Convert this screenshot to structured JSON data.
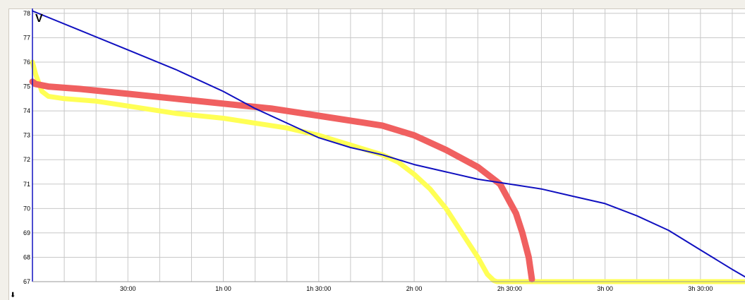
{
  "chart_data": {
    "type": "line",
    "ylabel": "V",
    "ylim": [
      67,
      78.2
    ],
    "xlim_minutes": [
      0,
      224
    ],
    "yticks": [
      "78",
      "77",
      "76",
      "75",
      "74",
      "73",
      "72",
      "71",
      "70",
      "69",
      "68",
      "67"
    ],
    "ytick_values": [
      78,
      77,
      76,
      75,
      74,
      73,
      72,
      71,
      70,
      69,
      68,
      67
    ],
    "xticks": [
      "30:00",
      "1h 00",
      "1h 30:00",
      "2h 00",
      "2h 30:00",
      "3h 00",
      "3h 30:00"
    ],
    "xtick_minutes": [
      30,
      60,
      90,
      120,
      150,
      180,
      210
    ],
    "grid": true,
    "series": [
      {
        "color": "#1010c0",
        "x_minutes": [
          0,
          15,
          30,
          45,
          60,
          70,
          80,
          90,
          100,
          110,
          120,
          130,
          140,
          150,
          160,
          170,
          180,
          190,
          200,
          210,
          220,
          224
        ],
        "y": [
          78.1,
          77.3,
          76.5,
          75.7,
          74.8,
          74.1,
          73.5,
          72.9,
          72.5,
          72.2,
          71.8,
          71.5,
          71.2,
          71.0,
          70.8,
          70.5,
          70.2,
          69.7,
          69.1,
          68.3,
          67.5,
          67.2
        ]
      },
      {
        "color": "#f06060",
        "x_minutes": [
          0,
          1,
          5,
          15,
          30,
          45,
          60,
          75,
          90,
          100,
          110,
          120,
          130,
          140,
          147,
          152,
          154,
          156,
          157
        ],
        "y": [
          75.2,
          75.1,
          75.0,
          74.9,
          74.7,
          74.5,
          74.3,
          74.1,
          73.8,
          73.6,
          73.4,
          73.0,
          72.4,
          71.7,
          71.0,
          69.8,
          69.0,
          68.0,
          67.1
        ]
      },
      {
        "color": "#ffff55",
        "x_minutes": [
          0,
          1,
          3,
          5,
          10,
          20,
          30,
          45,
          60,
          70,
          80,
          90,
          100,
          110,
          115,
          120,
          125,
          130,
          135,
          140,
          143,
          145,
          146,
          150,
          224
        ],
        "y": [
          76.0,
          75.5,
          74.8,
          74.6,
          74.5,
          74.4,
          74.2,
          73.9,
          73.7,
          73.5,
          73.3,
          73.0,
          72.6,
          72.2,
          71.9,
          71.4,
          70.8,
          70.0,
          69.0,
          68.0,
          67.3,
          67.05,
          67.0,
          67.0,
          67.0
        ]
      }
    ]
  }
}
